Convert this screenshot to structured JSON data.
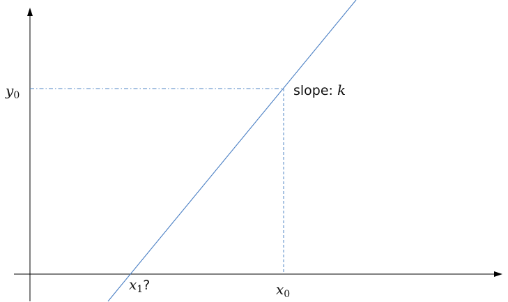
{
  "labels": {
    "y0": {
      "var": "y",
      "sub": "0"
    },
    "x0": {
      "var": "x",
      "sub": "0"
    },
    "x1": {
      "var": "x",
      "sub": "1",
      "suffix": "?"
    },
    "slope": {
      "prefix": "slope: ",
      "var": "k"
    }
  },
  "colors": {
    "axis": "#000000",
    "line": "#4a7fc4",
    "guide": "#4f86c6",
    "text": "#111111"
  }
}
